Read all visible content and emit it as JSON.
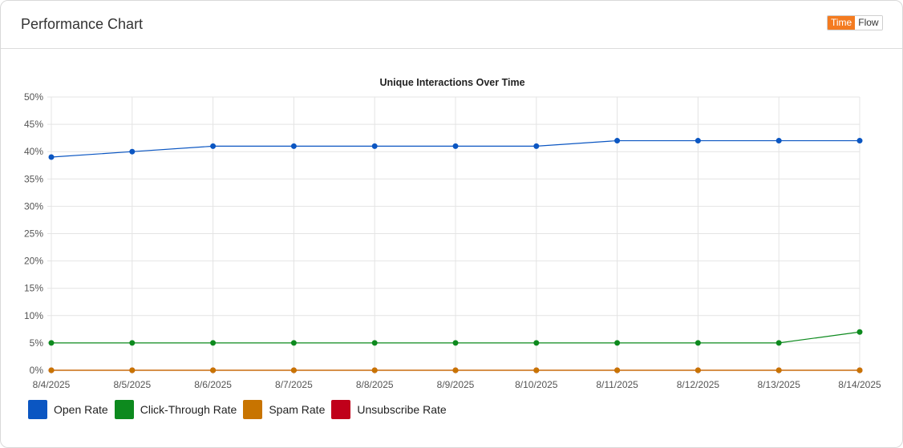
{
  "header": {
    "title": "Performance Chart",
    "toggle": {
      "time_label": "Time",
      "flow_label": "Flow",
      "active": "time"
    }
  },
  "colors": {
    "accent": "#f47b20",
    "grid": "#e4e4e4",
    "axis_text": "#555555"
  },
  "chart_data": {
    "type": "line",
    "title": "Unique Interactions Over Time",
    "xlabel": "",
    "ylabel": "",
    "ylim": [
      0,
      50
    ],
    "y_ticks": [
      "0%",
      "5%",
      "10%",
      "15%",
      "20%",
      "25%",
      "30%",
      "35%",
      "40%",
      "45%",
      "50%"
    ],
    "y_tick_values": [
      0,
      5,
      10,
      15,
      20,
      25,
      30,
      35,
      40,
      45,
      50
    ],
    "grid": true,
    "legend_position": "bottom-left",
    "categories": [
      "8/4/2025",
      "8/5/2025",
      "8/6/2025",
      "8/7/2025",
      "8/8/2025",
      "8/9/2025",
      "8/10/2025",
      "8/11/2025",
      "8/12/2025",
      "8/13/2025",
      "8/14/2025"
    ],
    "series": [
      {
        "name": "Open Rate",
        "color": "#0b56c2",
        "values": [
          39,
          40,
          41,
          41,
          41,
          41,
          41,
          42,
          42,
          42,
          42
        ]
      },
      {
        "name": "Click-Through Rate",
        "color": "#0d8a1e",
        "values": [
          5,
          5,
          5,
          5,
          5,
          5,
          5,
          5,
          5,
          5,
          7
        ]
      },
      {
        "name": "Spam Rate",
        "color": "#c87400",
        "values": [
          0,
          0,
          0,
          0,
          0,
          0,
          0,
          0,
          0,
          0,
          0
        ]
      },
      {
        "name": "Unsubscribe Rate",
        "color": "#c0001a",
        "values": [
          0,
          0,
          0,
          0,
          0,
          0,
          0,
          0,
          0,
          0,
          0
        ]
      }
    ]
  }
}
